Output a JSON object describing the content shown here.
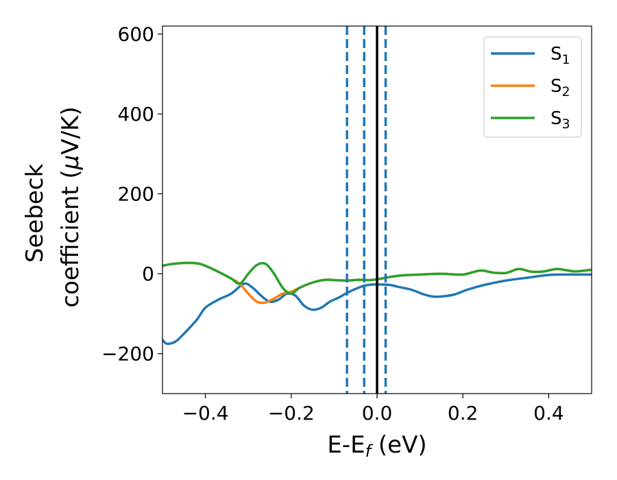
{
  "chart_data": {
    "type": "line",
    "xlabel": "E-E",
    "xlabel_sub": "f",
    "xlabel_unit": " (eV)",
    "ylabel_line1": "Seebeck",
    "ylabel_line2": "coefficient  (",
    "ylabel_mu": "μ",
    "ylabel_unit_tail": "V/K)",
    "xlim": [
      -0.5,
      0.5
    ],
    "ylim": [
      -300,
      620
    ],
    "x_ticks": [
      -0.4,
      -0.2,
      0.0,
      0.2,
      0.4
    ],
    "x_tick_labels": [
      "−0.4",
      "−0.2",
      "0.0",
      "0.2",
      "0.4"
    ],
    "y_ticks": [
      -200,
      0,
      200,
      400,
      600
    ],
    "y_tick_labels": [
      "−200",
      "0",
      "200",
      "400",
      "600"
    ],
    "grid": false,
    "legend_position": "top-right",
    "series": [
      {
        "name": "S",
        "name_sub": "1",
        "color": "#1f77b4",
        "x": [
          -0.5,
          -0.49,
          -0.47,
          -0.45,
          -0.42,
          -0.4,
          -0.37,
          -0.34,
          -0.31,
          -0.29,
          -0.27,
          -0.25,
          -0.23,
          -0.21,
          -0.19,
          -0.17,
          -0.15,
          -0.13,
          -0.11,
          -0.09,
          -0.07,
          -0.05,
          -0.03,
          -0.01,
          0.01,
          0.03,
          0.05,
          0.08,
          0.11,
          0.13,
          0.15,
          0.18,
          0.21,
          0.25,
          0.3,
          0.35,
          0.4,
          0.45,
          0.5
        ],
        "y": [
          -165,
          -175,
          -170,
          -150,
          -115,
          -85,
          -65,
          -50,
          -25,
          -35,
          -55,
          -70,
          -65,
          -50,
          -55,
          -80,
          -90,
          -85,
          -70,
          -60,
          -48,
          -38,
          -30,
          -27,
          -27,
          -28,
          -33,
          -40,
          -52,
          -57,
          -57,
          -52,
          -40,
          -28,
          -17,
          -10,
          -3,
          -2,
          -2
        ]
      },
      {
        "name": "S",
        "name_sub": "2",
        "color": "#ff7f0e",
        "x": [
          -0.5,
          -0.48,
          -0.45,
          -0.42,
          -0.4,
          -0.37,
          -0.34,
          -0.32,
          -0.3,
          -0.28,
          -0.26,
          -0.24,
          -0.22,
          -0.2,
          -0.18,
          -0.15,
          -0.12,
          -0.1,
          -0.07,
          -0.04,
          -0.02,
          0.0,
          0.03,
          0.06,
          0.1,
          0.15,
          0.2,
          0.24,
          0.27,
          0.3,
          0.33,
          0.36,
          0.39,
          0.42,
          0.46,
          0.5
        ],
        "y": [
          20,
          24,
          27,
          26,
          20,
          5,
          -12,
          -25,
          -50,
          -70,
          -72,
          -62,
          -50,
          -45,
          -35,
          -22,
          -15,
          -16,
          -17,
          -15,
          -16,
          -14,
          -8,
          -4,
          -2,
          0,
          -2,
          8,
          3,
          2,
          12,
          5,
          6,
          12,
          6,
          10
        ]
      },
      {
        "name": "S",
        "name_sub": "3",
        "color": "#2ca02c",
        "x": [
          -0.5,
          -0.48,
          -0.45,
          -0.42,
          -0.4,
          -0.37,
          -0.34,
          -0.32,
          -0.3,
          -0.28,
          -0.26,
          -0.24,
          -0.22,
          -0.2,
          -0.18,
          -0.15,
          -0.12,
          -0.1,
          -0.07,
          -0.04,
          -0.02,
          0.0,
          0.03,
          0.06,
          0.1,
          0.15,
          0.2,
          0.24,
          0.27,
          0.3,
          0.33,
          0.36,
          0.39,
          0.42,
          0.46,
          0.5
        ],
        "y": [
          20,
          24,
          27,
          26,
          20,
          5,
          -12,
          -25,
          0,
          22,
          25,
          0,
          -35,
          -50,
          -35,
          -22,
          -15,
          -16,
          -17,
          -15,
          -16,
          -14,
          -8,
          -4,
          -2,
          0,
          -2,
          8,
          3,
          2,
          12,
          5,
          6,
          12,
          6,
          10
        ]
      }
    ],
    "vlines": [
      {
        "x": 0.0,
        "color": "#000000",
        "style": "solid"
      },
      {
        "x": -0.07,
        "color": "#1f77b4",
        "style": "dashed"
      },
      {
        "x": -0.03,
        "color": "#1f77b4",
        "style": "dashed"
      },
      {
        "x": 0.02,
        "color": "#1f77b4",
        "style": "dashed"
      }
    ]
  }
}
